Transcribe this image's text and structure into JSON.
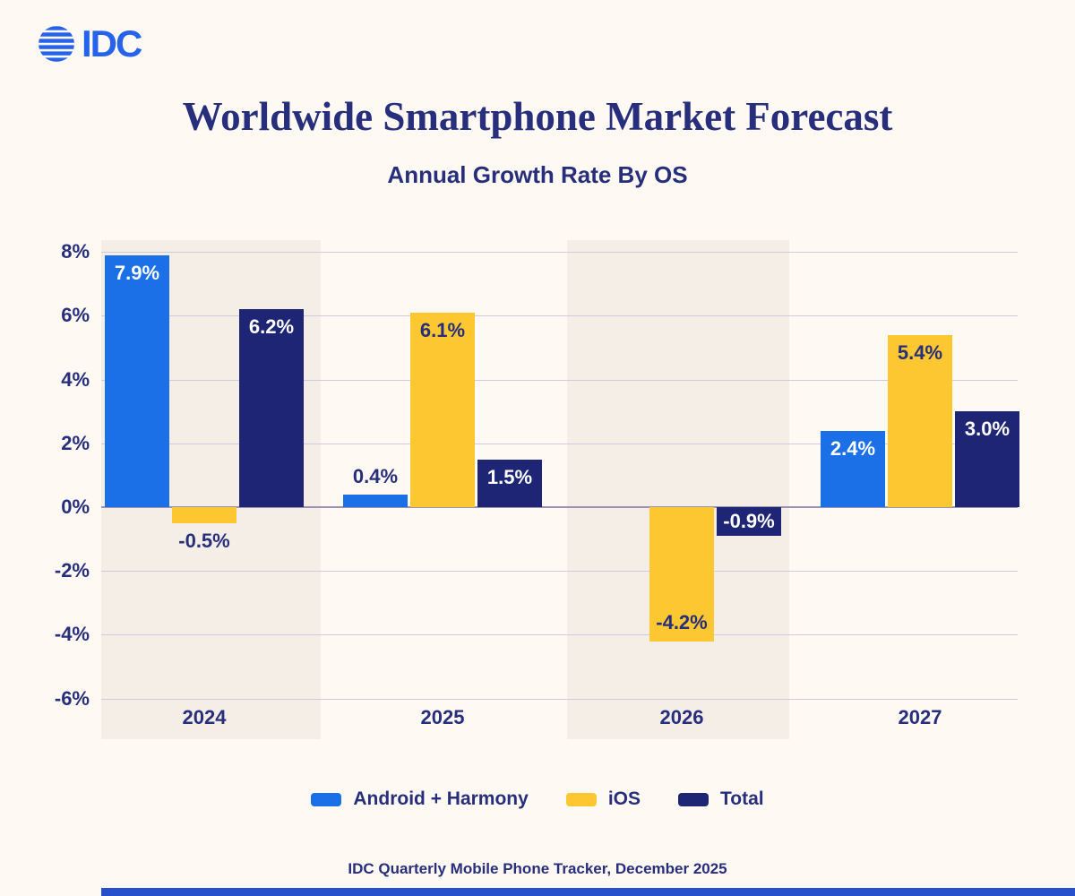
{
  "page": {
    "logo_text": "IDC",
    "title": "Worldwide Smartphone Market Forecast",
    "subtitle": "Annual Growth Rate By OS",
    "footer": "IDC Quarterly Mobile Phone Tracker, December 2025"
  },
  "colors": {
    "background": "#FFF9F3",
    "band": "#F5EEE7",
    "navy_text": "#272E7B",
    "grid": "#CFCADF",
    "zero_line": "#9A94B2",
    "android_blue": "#1B70E8",
    "ios_yellow": "#FCC730",
    "total_navy": "#1F2575",
    "logo_blue": "#2663EC",
    "bottom_bar": "#2750CC"
  },
  "chart_data": {
    "type": "bar",
    "title": "Worldwide Smartphone Market Forecast",
    "subtitle": "Annual Growth Rate By OS",
    "categories": [
      "2024",
      "2025",
      "2026",
      "2027"
    ],
    "series": [
      {
        "name": "Android + Harmony",
        "color_key": "android_blue",
        "values": [
          7.9,
          0.4,
          0,
          2.4
        ],
        "labels": [
          "7.9%",
          "0.4%",
          "",
          "2.4%"
        ],
        "label_pos": [
          "inside-top",
          "above",
          "none",
          "inside-top"
        ],
        "inside_label_color": "#FFFFFF"
      },
      {
        "name": "iOS",
        "color_key": "ios_yellow",
        "values": [
          -0.5,
          6.1,
          -4.2,
          5.4
        ],
        "labels": [
          "-0.5%",
          "6.1%",
          "-4.2%",
          "5.4%"
        ],
        "label_pos": [
          "below",
          "inside-top",
          "inside-bottom",
          "inside-top"
        ],
        "inside_label_color": "#272E7B"
      },
      {
        "name": "Total",
        "color_key": "total_navy",
        "values": [
          6.2,
          1.5,
          -0.9,
          3.0
        ],
        "labels": [
          "6.2%",
          "1.5%",
          "-0.9%",
          "3.0%"
        ],
        "label_pos": [
          "inside-top",
          "inside-top",
          "inside-top",
          "inside-top"
        ],
        "inside_label_color": "#FFFFFF"
      }
    ],
    "y_ticks": [
      8,
      6,
      4,
      2,
      0,
      -2,
      -4,
      -6
    ],
    "y_tick_labels": [
      "8%",
      "6%",
      "4%",
      "2%",
      "0%",
      "-2%",
      "-4%",
      "-6%"
    ],
    "ylim": [
      -6,
      8
    ],
    "grid": "horizontal",
    "legend_position": "bottom",
    "band_indices": [
      0,
      2
    ]
  }
}
